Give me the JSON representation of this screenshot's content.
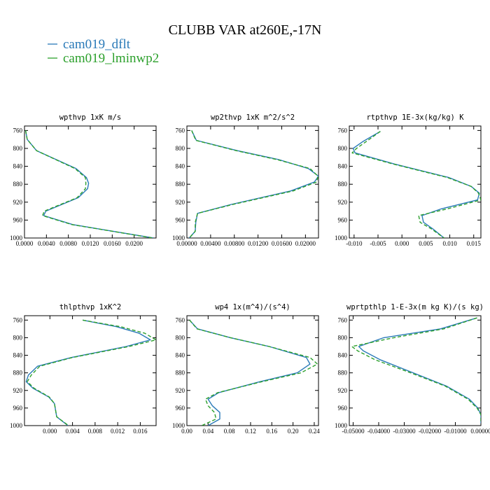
{
  "title": "CLUBB VAR at260E,-17N",
  "legend": [
    {
      "label": "cam019_dflt",
      "color": "#2a7ab8",
      "dashed": false
    },
    {
      "label": "cam019_lminwp2",
      "color": "#2ca02c",
      "dashed": true
    }
  ],
  "chart_data": [
    {
      "type": "line",
      "title": "wpthvp  1xK m/s",
      "xlim": [
        0.0,
        0.024
      ],
      "ylim": [
        750,
        1000
      ],
      "y_inverted": true,
      "xticks": [
        0.0,
        0.004,
        0.008,
        0.012,
        0.016,
        0.02
      ],
      "xtick_labels": [
        "0.0000",
        "0.0040",
        "0.0080",
        "0.0120",
        "0.0160",
        "0.0200"
      ],
      "yticks": [
        760,
        800,
        840,
        880,
        920,
        960,
        1000
      ],
      "ytick_labels": [
        "760",
        "800",
        "840",
        "880",
        "920",
        "960",
        "1000"
      ],
      "series": [
        {
          "name": "cam019_dflt",
          "y": [
            760,
            780,
            805,
            845,
            865,
            878,
            890,
            910,
            940,
            950,
            970,
            1000
          ],
          "x": [
            0.0002,
            0.0005,
            0.0022,
            0.0094,
            0.0113,
            0.0117,
            0.0115,
            0.0098,
            0.0039,
            0.0035,
            0.0088,
            0.0235
          ]
        },
        {
          "name": "cam019_lminwp2",
          "y": [
            760,
            780,
            805,
            845,
            865,
            878,
            890,
            910,
            940,
            950,
            970,
            1000
          ],
          "x": [
            0.0002,
            0.0005,
            0.0022,
            0.0092,
            0.0111,
            0.0112,
            0.0111,
            0.0096,
            0.0036,
            0.0033,
            0.0086,
            0.0234
          ]
        }
      ]
    },
    {
      "type": "line",
      "title": "wp2thvp  1xK m^2/s^2",
      "xlim": [
        0.0,
        0.0222
      ],
      "ylim": [
        750,
        1000
      ],
      "y_inverted": true,
      "xticks": [
        0.0,
        0.004,
        0.008,
        0.012,
        0.016,
        0.02
      ],
      "xtick_labels": [
        "0.00000",
        "0.00400",
        "0.00800",
        "0.01200",
        "0.01600",
        "0.02000"
      ],
      "yticks": [
        760,
        800,
        840,
        880,
        920,
        960,
        1000
      ],
      "ytick_labels": [
        "760",
        "800",
        "840",
        "880",
        "920",
        "960",
        "1000"
      ],
      "series": [
        {
          "name": "cam019_dflt",
          "y": [
            760,
            782,
            805,
            825,
            845,
            862,
            875,
            895,
            925,
            945,
            965,
            985,
            1000
          ],
          "x": [
            0.0008,
            0.0016,
            0.0085,
            0.0155,
            0.0205,
            0.0222,
            0.0215,
            0.0175,
            0.0075,
            0.0018,
            0.0015,
            0.0014,
            0.0004
          ]
        },
        {
          "name": "cam019_lminwp2",
          "y": [
            760,
            782,
            805,
            825,
            845,
            862,
            875,
            895,
            925,
            945,
            965,
            985,
            1000
          ],
          "x": [
            0.0008,
            0.0015,
            0.0083,
            0.0152,
            0.0208,
            0.0221,
            0.0219,
            0.0179,
            0.0078,
            0.0018,
            0.0014,
            0.0014,
            0.0004
          ]
        }
      ]
    },
    {
      "type": "line",
      "title": "rtpthvp  1E-3x(kg/kg) K",
      "xlim": [
        -0.011,
        0.0165
      ],
      "ylim": [
        750,
        1000
      ],
      "y_inverted": true,
      "xticks": [
        -0.01,
        -0.005,
        0.0,
        0.005,
        0.01,
        0.015
      ],
      "xtick_labels": [
        "-0.010",
        "-0.005",
        "0.000",
        "0.005",
        "0.010",
        "0.015"
      ],
      "yticks": [
        760,
        800,
        840,
        880,
        920,
        960,
        1000
      ],
      "ytick_labels": [
        "760",
        "800",
        "840",
        "880",
        "920",
        "960",
        "1000"
      ],
      "series": [
        {
          "name": "cam019_dflt",
          "y": [
            762,
            785,
            800,
            810,
            835,
            865,
            885,
            900,
            915,
            935,
            950,
            965,
            980,
            1000
          ],
          "x": [
            -0.0045,
            -0.0082,
            -0.0102,
            -0.0098,
            -0.0015,
            0.0098,
            0.0145,
            0.0162,
            0.0158,
            0.0082,
            0.0042,
            0.0045,
            0.0065,
            0.0088
          ]
        },
        {
          "name": "cam019_lminwp2",
          "y": [
            762,
            785,
            800,
            810,
            835,
            865,
            885,
            900,
            915,
            935,
            950,
            965,
            980,
            1000
          ],
          "x": [
            -0.0045,
            -0.0075,
            -0.0095,
            -0.0104,
            -0.0018,
            0.0095,
            0.0145,
            0.016,
            0.0165,
            0.0095,
            0.0035,
            0.0038,
            0.0062,
            0.0088
          ]
        }
      ]
    },
    {
      "type": "line",
      "title": "thlpthvp  1xK^2",
      "xlim": [
        -0.0045,
        0.0188
      ],
      "ylim": [
        750,
        1000
      ],
      "y_inverted": true,
      "xticks": [
        0.0,
        0.004,
        0.008,
        0.012,
        0.016
      ],
      "xtick_labels": [
        "0.000",
        "0.004",
        "0.008",
        "0.012",
        "0.016"
      ],
      "yticks": [
        760,
        800,
        840,
        880,
        920,
        960,
        1000
      ],
      "ytick_labels": [
        "760",
        "800",
        "840",
        "880",
        "920",
        "960",
        "1000"
      ],
      "series": [
        {
          "name": "cam019_dflt",
          "y": [
            760,
            775,
            790,
            805,
            820,
            845,
            865,
            885,
            900,
            915,
            935,
            950,
            965,
            980,
            1000
          ],
          "x": [
            0.0058,
            0.0118,
            0.0158,
            0.0178,
            0.0135,
            0.0038,
            -0.0022,
            -0.0038,
            -0.0042,
            -0.003,
            -0.0002,
            0.0008,
            0.001,
            0.0012,
            0.0032
          ]
        },
        {
          "name": "cam019_lminwp2",
          "y": [
            760,
            775,
            790,
            805,
            820,
            845,
            865,
            885,
            900,
            915,
            935,
            950,
            965,
            980,
            1000
          ],
          "x": [
            0.0058,
            0.0125,
            0.0168,
            0.0188,
            0.014,
            0.004,
            -0.0018,
            -0.0033,
            -0.004,
            -0.0028,
            -0.0001,
            0.0008,
            0.001,
            0.0012,
            0.0033
          ]
        }
      ]
    },
    {
      "type": "line",
      "title": "wp4  1x(m^4)/(s^4)",
      "xlim": [
        0.0,
        0.248
      ],
      "ylim": [
        750,
        1000
      ],
      "y_inverted": true,
      "xticks": [
        0.0,
        0.04,
        0.08,
        0.12,
        0.16,
        0.2,
        0.24
      ],
      "xtick_labels": [
        "0.00",
        "0.04",
        "0.08",
        "0.12",
        "0.16",
        "0.20",
        "0.24"
      ],
      "yticks": [
        760,
        800,
        840,
        880,
        920,
        960,
        1000
      ],
      "ytick_labels": [
        "760",
        "800",
        "840",
        "880",
        "920",
        "960",
        "1000"
      ],
      "series": [
        {
          "name": "cam019_dflt",
          "y": [
            760,
            780,
            800,
            820,
            845,
            860,
            880,
            900,
            925,
            940,
            955,
            970,
            985,
            1000
          ],
          "x": [
            0.005,
            0.02,
            0.082,
            0.155,
            0.225,
            0.232,
            0.208,
            0.138,
            0.06,
            0.04,
            0.048,
            0.062,
            0.062,
            0.04
          ]
        },
        {
          "name": "cam019_lminwp2",
          "y": [
            760,
            780,
            800,
            820,
            845,
            860,
            880,
            900,
            925,
            940,
            955,
            970,
            985,
            1000
          ],
          "x": [
            0.005,
            0.019,
            0.082,
            0.155,
            0.232,
            0.246,
            0.215,
            0.142,
            0.058,
            0.035,
            0.04,
            0.052,
            0.055,
            0.028
          ]
        }
      ]
    },
    {
      "type": "line",
      "title": "wprtpthlp  1-E-3x(m kg K)/(s kg)",
      "xlim": [
        -0.0515,
        0.0
      ],
      "ylim": [
        750,
        1000
      ],
      "y_inverted": true,
      "xticks": [
        -0.05,
        -0.04,
        -0.03,
        -0.02,
        -0.01,
        0.0
      ],
      "xtick_labels": [
        "-0.05000",
        "-0.04000",
        "-0.03000",
        "-0.02000",
        "-0.01000",
        "0.00000"
      ],
      "yticks": [
        760,
        800,
        840,
        880,
        920,
        960,
        1000
      ],
      "ytick_labels": [
        "760",
        "800",
        "840",
        "880",
        "920",
        "960",
        "1000"
      ],
      "series": [
        {
          "name": "cam019_dflt",
          "y": [
            755,
            780,
            800,
            820,
            830,
            850,
            880,
            910,
            940,
            960,
            975,
            985,
            995
          ],
          "x": [
            -0.0015,
            -0.0158,
            -0.038,
            -0.0478,
            -0.046,
            -0.0395,
            -0.0265,
            -0.0135,
            -0.0045,
            -0.0012,
            0.0,
            0.0,
            0.0
          ]
        },
        {
          "name": "cam019_lminwp2",
          "y": [
            755,
            780,
            800,
            820,
            830,
            850,
            880,
            910,
            940,
            960,
            975,
            985,
            995
          ],
          "x": [
            -0.0015,
            -0.0145,
            -0.034,
            -0.0505,
            -0.0482,
            -0.0415,
            -0.0275,
            -0.014,
            -0.005,
            -0.0015,
            0.0,
            0.0,
            0.0
          ]
        }
      ]
    }
  ]
}
